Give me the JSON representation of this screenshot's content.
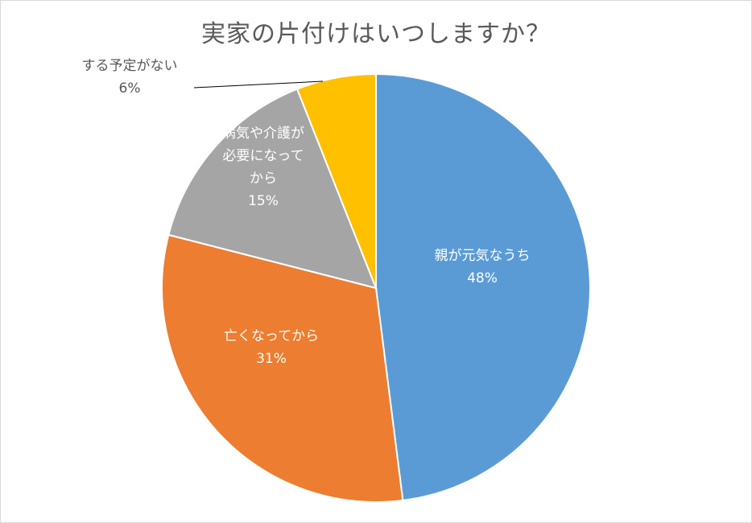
{
  "chart_data": {
    "type": "pie",
    "title": "実家の片付けはいつしますか？",
    "slices": [
      {
        "label_lines": [
          "親が元気なうち"
        ],
        "value": 48,
        "value_label": "48%",
        "color": "#5b9bd5",
        "label_color": "#ffffff"
      },
      {
        "label_lines": [
          "亡くなってから"
        ],
        "value": 31,
        "value_label": "31%",
        "color": "#ed7d31",
        "label_color": "#ffffff"
      },
      {
        "label_lines": [
          "病気や介護が",
          "必要になって",
          "から"
        ],
        "value": 15,
        "value_label": "15%",
        "color": "#a5a5a5",
        "label_color": "#ffffff"
      },
      {
        "label_lines": [
          "する予定がない"
        ],
        "value": 6,
        "value_label": "6%",
        "color": "#ffc000",
        "label_color": "#595959"
      }
    ],
    "start_angle_deg": 0,
    "direction": "clockwise",
    "legend": "none",
    "data_labels": "inside, last slice outside with leader line"
  }
}
